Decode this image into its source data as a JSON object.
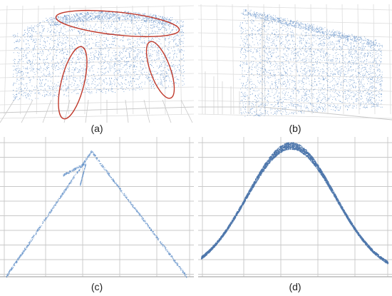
{
  "panels": [
    {
      "id": "a",
      "caption": "(a)"
    },
    {
      "id": "b",
      "caption": "(b)"
    },
    {
      "id": "c",
      "caption": "(c)"
    },
    {
      "id": "d",
      "caption": "(d)"
    }
  ],
  "colors": {
    "points": "#4a7fc1",
    "points_dark": "#2f5f9e",
    "grid": "#c8c8c8",
    "grid_light": "#dcdcdc",
    "highlight_ellipse": "#c0392b",
    "background": "#ffffff"
  }
}
